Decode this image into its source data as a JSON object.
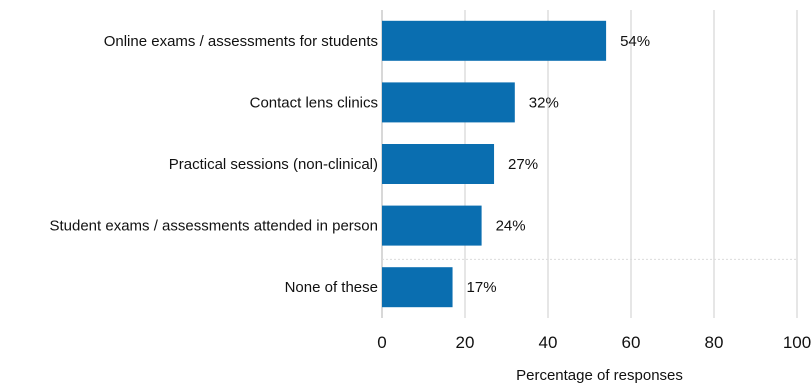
{
  "chart_data": {
    "type": "bar",
    "orientation": "horizontal",
    "categories": [
      "Online exams / assessments for students",
      "Contact lens clinics",
      "Practical sessions (non-clinical)",
      "Student exams / assessments attended in person",
      "None of these"
    ],
    "values": [
      54,
      32,
      27,
      24,
      17
    ],
    "data_labels": [
      "54%",
      "32%",
      "27%",
      "24%",
      "17%"
    ],
    "xlabel": "Percentage of responses",
    "ylabel": "",
    "title": "",
    "xlim": [
      0,
      100
    ],
    "x_ticks": [
      0,
      20,
      40,
      60,
      80,
      100
    ],
    "x_tick_labels": [
      "0",
      "20",
      "40",
      "60",
      "80",
      "100"
    ],
    "grid": "vertical",
    "legend": "none",
    "bar_color": "#0a6eb0",
    "grid_color": "#d6d6d6"
  }
}
